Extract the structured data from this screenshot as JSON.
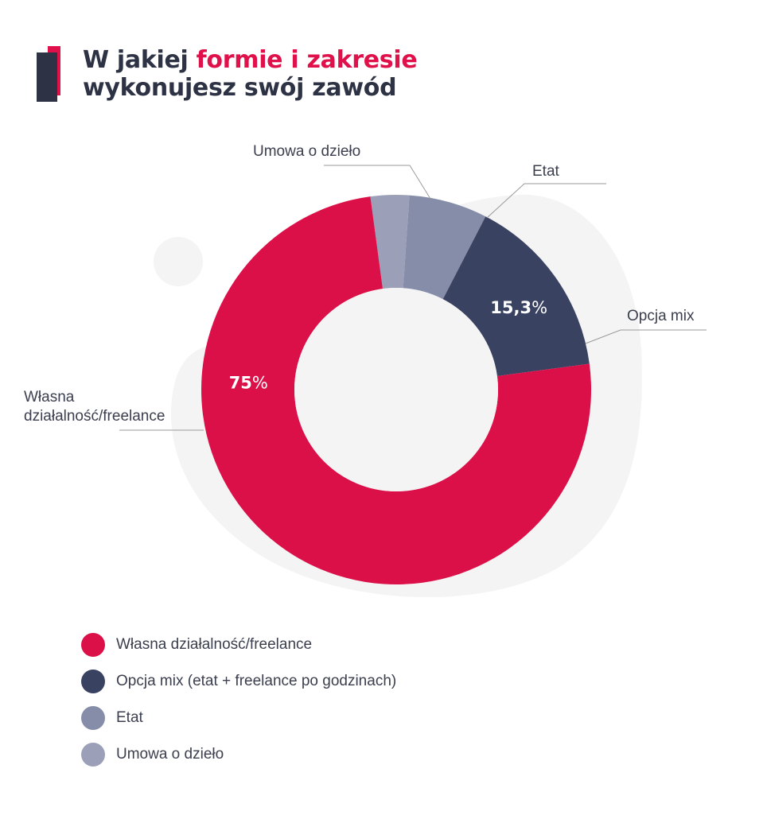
{
  "title": {
    "line1_prefix": "W jakiej ",
    "line1_accent": "formie i zakresie",
    "line2": "wykonujesz swój zawód"
  },
  "colors": {
    "accent": "#e0114a",
    "navy": "#3a4262",
    "slate": "#868da9",
    "light_slate": "#9ba0b8",
    "blob": "#f4f4f4"
  },
  "chart_data": {
    "type": "pie",
    "style": "donut",
    "series": [
      {
        "name": "Własna działalność/freelance",
        "value": 75,
        "value_label": "75%",
        "callout_label": "Własna działalność/freelance",
        "color": "#dc1048"
      },
      {
        "name": "Opcja mix (etat + freelance po godzinach)",
        "value": 15.3,
        "value_label": "15,3%",
        "callout_label": "Opcja mix",
        "color": "#3a4262"
      },
      {
        "name": "Etat",
        "value": 6.5,
        "value_label": "",
        "callout_label": "Etat",
        "color": "#868da9"
      },
      {
        "name": "Umowa o dzieło",
        "value": 3.2,
        "value_label": "",
        "callout_label": "Umowa o dzieło",
        "color": "#9ba0b8"
      }
    ],
    "legend_position": "bottom-left"
  }
}
